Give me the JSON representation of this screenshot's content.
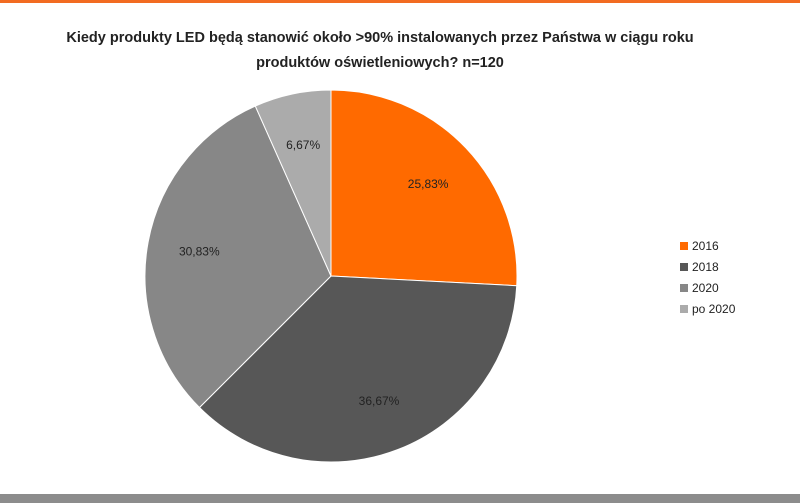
{
  "chart_data": {
    "type": "pie",
    "title": [
      "Kiedy produkty LED będą stanowić około >90% instalowanych przez Państwa w ciągu roku",
      "produktów oświetleniowych? n=120"
    ],
    "slices": [
      {
        "name": "2016",
        "value": 25.83,
        "label": "25,83%",
        "color": "#ff6a00"
      },
      {
        "name": "2018",
        "value": 36.67,
        "label": "36,67%",
        "color": "#575757"
      },
      {
        "name": "2020",
        "value": 30.83,
        "label": "30,83%",
        "color": "#878787"
      },
      {
        "name": "po 2020",
        "value": 6.67,
        "label": "6,67%",
        "color": "#ababab"
      }
    ],
    "legend_position": "right"
  },
  "frame": {
    "accent_color": "#f26b21",
    "footer_color": "#8c8c8c"
  }
}
